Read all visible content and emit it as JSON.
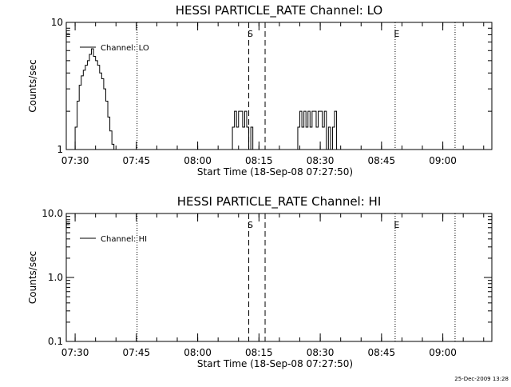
{
  "footer_stamp": "25-Dec-2009 13:28",
  "chart_data": [
    {
      "type": "line",
      "title": "HESSI PARTICLE_RATE Channel: LO",
      "xlabel": "Start Time (18-Sep-08 07:27:50)",
      "ylabel": "Counts/sec",
      "yscale": "log",
      "ylim": [
        1,
        10
      ],
      "ytick_values": [
        1,
        10
      ],
      "ytick_labels": [
        "1",
        "10"
      ],
      "xlim": [
        "07:27:50",
        "09:12:00"
      ],
      "xtick_values": [
        "07:30",
        "07:45",
        "08:00",
        "08:15",
        "08:30",
        "08:45",
        "09:00"
      ],
      "xtick_labels": [
        "07:30",
        "07:45",
        "08:00",
        "08:15",
        "08:30",
        "08:45",
        "09:00"
      ],
      "legend": {
        "entries": [
          "Channel: LO"
        ],
        "placement": "top-left"
      },
      "grid": false,
      "dotted_lines": [
        "07:45:10",
        "08:48:20",
        "09:03:00"
      ],
      "dashed_lines": [
        "08:12:30",
        "08:16:30"
      ],
      "markers": [
        {
          "label": "E",
          "x": "07:27:50"
        },
        {
          "label": "S",
          "x": "08:12:30"
        },
        {
          "label": "E",
          "x": "08:48:20"
        }
      ],
      "series": [
        {
          "name": "Channel: LO",
          "x": [
            "07:29:30",
            "07:30:00",
            "07:30:30",
            "07:31:00",
            "07:31:30",
            "07:32:00",
            "07:32:30",
            "07:33:00",
            "07:33:30",
            "07:34:00",
            "07:34:30",
            "07:35:00",
            "07:35:30",
            "07:36:00",
            "07:36:30",
            "07:37:00",
            "07:37:30",
            "07:38:00",
            "07:38:30",
            "07:39:00",
            "07:39:30",
            "07:40:00",
            "07:40:30",
            "08:08:00",
            "08:08:30",
            "08:09:00",
            "08:09:30",
            "08:10:00",
            "08:10:30",
            "08:11:00",
            "08:11:30",
            "08:12:00",
            "08:12:30",
            "08:13:00",
            "08:13:30",
            "08:14:00",
            "08:24:00",
            "08:24:30",
            "08:25:00",
            "08:25:30",
            "08:26:00",
            "08:26:30",
            "08:27:00",
            "08:27:30",
            "08:28:00",
            "08:28:30",
            "08:29:00",
            "08:29:30",
            "08:30:00",
            "08:30:30",
            "08:31:00",
            "08:31:30",
            "08:32:00",
            "08:32:30",
            "08:33:00",
            "08:33:30",
            "08:34:00"
          ],
          "values": [
            1,
            1.5,
            2.4,
            3.2,
            3.8,
            4.2,
            4.6,
            5.0,
            5.6,
            6.2,
            5.4,
            5.0,
            4.6,
            4.0,
            3.6,
            3.0,
            2.4,
            1.8,
            1.4,
            1.1,
            1,
            1,
            1,
            1,
            1.5,
            2.0,
            1.5,
            2.0,
            2.0,
            1.5,
            2.0,
            1.5,
            1.0,
            1.5,
            1.0,
            1,
            1,
            1.5,
            2.0,
            1.5,
            2.0,
            1.5,
            2.0,
            1.5,
            2.0,
            2.0,
            1.5,
            2.0,
            2.0,
            1.5,
            2.0,
            1.0,
            1.5,
            1.0,
            1.5,
            2.0,
            1
          ]
        }
      ]
    },
    {
      "type": "line",
      "title": "HESSI PARTICLE_RATE Channel: HI",
      "xlabel": "Start Time (18-Sep-08 07:27:50)",
      "ylabel": "Counts/sec",
      "yscale": "log",
      "ylim": [
        0.1,
        10
      ],
      "ytick_values": [
        0.1,
        1,
        10
      ],
      "ytick_labels": [
        "0.1",
        "1.0",
        "10.0"
      ],
      "xlim": [
        "07:27:50",
        "09:12:00"
      ],
      "xtick_values": [
        "07:30",
        "07:45",
        "08:00",
        "08:15",
        "08:30",
        "08:45",
        "09:00"
      ],
      "xtick_labels": [
        "07:30",
        "07:45",
        "08:00",
        "08:15",
        "08:30",
        "08:45",
        "09:00"
      ],
      "legend": {
        "entries": [
          "Channel: HI"
        ],
        "placement": "top-left"
      },
      "grid": false,
      "dotted_lines": [
        "07:45:10",
        "08:48:20",
        "09:03:00"
      ],
      "dashed_lines": [
        "08:12:30",
        "08:16:30"
      ],
      "markers": [
        {
          "label": "E",
          "x": "07:27:50"
        },
        {
          "label": "S",
          "x": "08:12:30"
        },
        {
          "label": "E",
          "x": "08:48:20"
        }
      ],
      "series": [
        {
          "name": "Channel: HI",
          "x": [],
          "values": []
        }
      ]
    }
  ]
}
